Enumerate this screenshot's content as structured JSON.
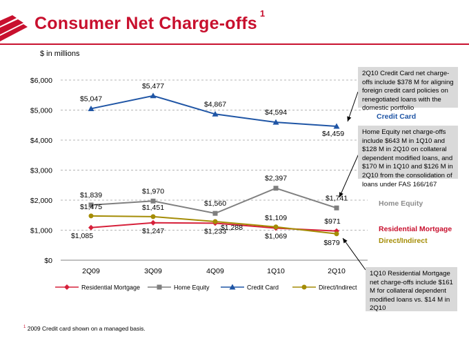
{
  "title": "Consumer Net Charge-offs",
  "title_sup": "1",
  "units": "$ in millions",
  "notes": {
    "credit_card": "2Q10 Credit Card net charge-offs include $378 M for aligning foreign credit card policies on renegotiated loans with the domestic portfolio",
    "home_equity": "Home Equity net charge-offs include $643 M in 1Q10 and $128 M in 2Q10 on collateral dependent modified loans, and $170 M in 1Q10 and $126 M in 2Q10 from the consolidation of loans under FAS 166/167",
    "residential": "1Q10 Residential Mortgage net charge-offs include $161 M for collateral dependent modified loans vs. $14 M in 2Q10"
  },
  "footnote": {
    "marker": "1",
    "text": "2009 Credit card shown on a managed basis."
  },
  "colors": {
    "brand": "#c8102e",
    "residential": "#d6203a",
    "home_equity": "#7f7f7f",
    "credit_card": "#1f55a5",
    "direct": "#a48c05"
  },
  "chart_data": {
    "type": "line",
    "categories": [
      "2Q09",
      "3Q09",
      "4Q09",
      "1Q10",
      "2Q10"
    ],
    "ylim": [
      0,
      6000
    ],
    "yticks": [
      0,
      1000,
      2000,
      3000,
      4000,
      5000,
      6000
    ],
    "ytick_labels": [
      "$0",
      "$1,000",
      "$2,000",
      "$3,000",
      "$4,000",
      "$5,000",
      "$6,000"
    ],
    "series": [
      {
        "name": "Residential Mortgage",
        "key": "residential",
        "marker": "diamond",
        "values": [
          1085,
          1247,
          1233,
          1069,
          971
        ],
        "labels": [
          "$1,085",
          "$1,247",
          "$1,233",
          "$1,069",
          "$971"
        ],
        "right_label": "Residential Mortgage"
      },
      {
        "name": "Home Equity",
        "key": "home_equity",
        "marker": "square",
        "values": [
          1839,
          1970,
          1560,
          2397,
          1741
        ],
        "labels": [
          "$1,839",
          "$1,970",
          "$1,560",
          "$2,397",
          "$1,741"
        ],
        "right_label": "Home Equity"
      },
      {
        "name": "Credit Card",
        "key": "credit_card",
        "marker": "triangle",
        "values": [
          5047,
          5477,
          4867,
          4594,
          4459
        ],
        "labels": [
          "$5,047",
          "$5,477",
          "$4,867",
          "$4,594",
          "$4,459"
        ],
        "right_label": "Credit Card"
      },
      {
        "name": "Direct/Indirect",
        "key": "direct",
        "marker": "circle",
        "values": [
          1475,
          1451,
          1288,
          1109,
          879
        ],
        "labels": [
          "$1,475",
          "$1,451",
          "$1,288",
          "$1,109",
          "$879"
        ],
        "right_label": "Direct/Indirect"
      }
    ]
  }
}
